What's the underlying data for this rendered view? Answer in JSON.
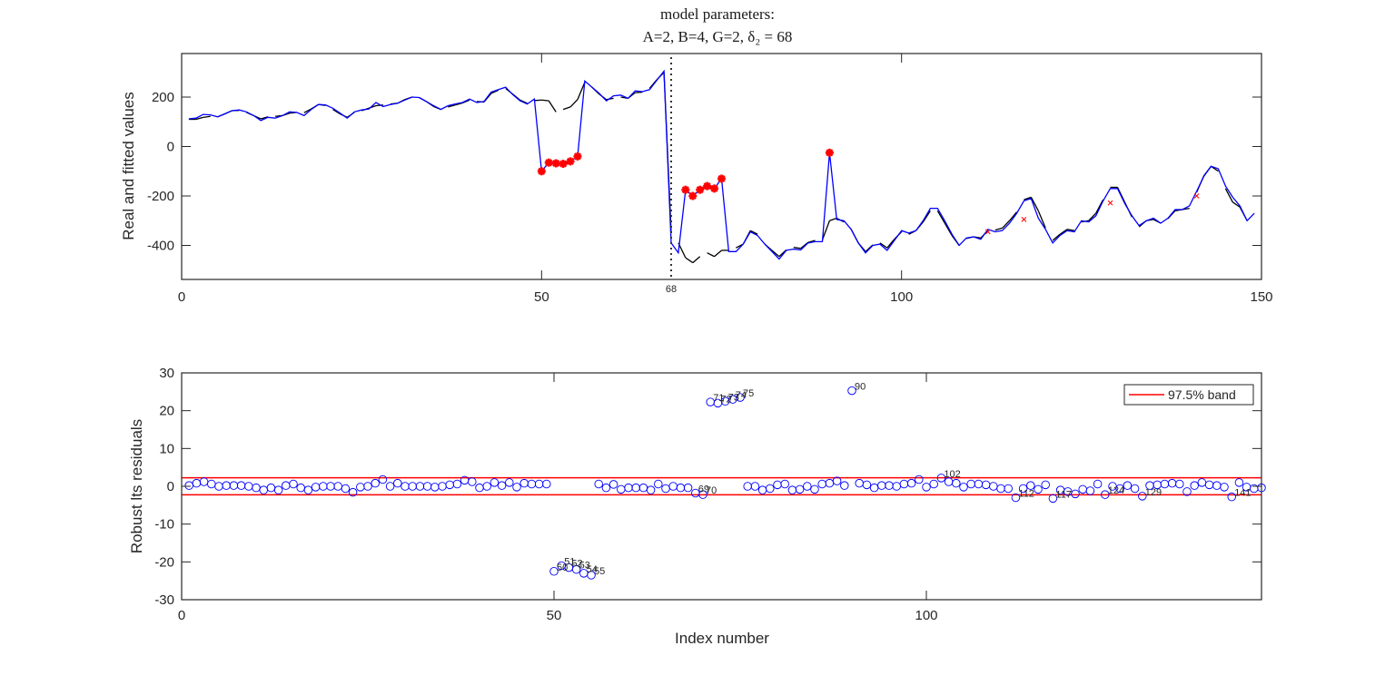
{
  "figure": {
    "title_line1": "model parameters:",
    "title_line2": "A=2, B=4, G=2, δ₂ = 68"
  },
  "chart_data": [
    {
      "type": "line",
      "name": "real-and-fitted",
      "title": "model parameters: A=2, B=4, G=2, δ2 = 68",
      "xlabel": "",
      "ylabel": "Real and fitted values",
      "xlim": [
        0,
        150
      ],
      "ylim": [
        -540,
        380
      ],
      "xticks": [
        0,
        50,
        100,
        150
      ],
      "xtick_labels": [
        "0",
        "50",
        "100",
        "150"
      ],
      "yticks": [
        200,
        0,
        -200,
        -400
      ],
      "ytick_labels": [
        "200",
        "0",
        "-200",
        "-400"
      ],
      "grid": false,
      "vline": {
        "x": 68,
        "label": "68",
        "style": "dotted",
        "color": "#333333"
      },
      "colors": {
        "real": "#0000ff",
        "fitted": "#000000",
        "outlier": "#ff0000"
      },
      "series": [
        {
          "name": "Real values",
          "color": "#0000ff",
          "x_start": 1,
          "values": [
            112,
            115,
            130,
            128,
            120,
            132,
            145,
            148,
            140,
            125,
            105,
            118,
            115,
            125,
            140,
            138,
            125,
            150,
            170,
            168,
            155,
            135,
            115,
            140,
            148,
            152,
            178,
            162,
            170,
            175,
            188,
            200,
            198,
            182,
            165,
            150,
            165,
            172,
            178,
            192,
            178,
            182,
            220,
            230,
            240,
            210,
            185,
            172,
            192,
            -100,
            -65,
            -68,
            -70,
            -60,
            -40,
            265,
            240,
            215,
            185,
            205,
            208,
            195,
            225,
            222,
            230,
            268,
            305,
            -390,
            -430,
            -175,
            -200,
            -175,
            -160,
            -170,
            -130,
            -425,
            -425,
            -395,
            -345,
            -360,
            -395,
            -425,
            -455,
            -420,
            -415,
            -418,
            -390,
            -385,
            -385,
            -25,
            -295,
            -300,
            -335,
            -390,
            -430,
            -400,
            -395,
            -420,
            -380,
            -340,
            -350,
            -340,
            -300,
            -250,
            -250,
            -300,
            -355,
            -400,
            -370,
            -365,
            -375,
            -335,
            -345,
            -340,
            -310,
            -270,
            -220,
            -210,
            -290,
            -335,
            -390,
            -360,
            -340,
            -345,
            -300,
            -305,
            -280,
            -220,
            -170,
            -170,
            -230,
            -280,
            -320,
            -300,
            -290,
            -310,
            -290,
            -255,
            -255,
            -240,
            -180,
            -120,
            -80,
            -90,
            -160,
            -205,
            -240,
            -300,
            -270
          ],
          "plot_markers": false
        },
        {
          "name": "Fitted values",
          "color": "#000000",
          "x_start": 1,
          "values": [
            110,
            110,
            118,
            122,
            120,
            132,
            145,
            146,
            138,
            125,
            112,
            120,
            122,
            125,
            135,
            138,
            137,
            152,
            170,
            166,
            150,
            132,
            118,
            138,
            145,
            155,
            165,
            168,
            172,
            175,
            190,
            200,
            198,
            182,
            162,
            150,
            160,
            168,
            176,
            188,
            182,
            180,
            215,
            228,
            235,
            212,
            188,
            175,
            186,
            188,
            185,
            140,
            150,
            160,
            190,
            260,
            240,
            212,
            190,
            195,
            200,
            195,
            218,
            220,
            235,
            270,
            300,
            -350,
            -390,
            -450,
            -470,
            -445,
            -430,
            -445,
            -420,
            -420,
            -410,
            -395,
            -340,
            -355,
            -395,
            -420,
            -445,
            -418,
            -408,
            -412,
            -388,
            -380,
            -378,
            -300,
            -290,
            -305,
            -335,
            -390,
            -425,
            -398,
            -390,
            -410,
            -375,
            -345,
            -355,
            -340,
            -305,
            -260,
            -260,
            -310,
            -360,
            -400,
            -372,
            -365,
            -370,
            -340,
            -338,
            -330,
            -300,
            -265,
            -215,
            -205,
            -260,
            -330,
            -380,
            -355,
            -335,
            -340,
            -305,
            -300,
            -270,
            -215,
            -165,
            -165,
            -225,
            -285,
            -325,
            -300,
            -295,
            -310,
            -292,
            -260,
            -255,
            -250,
            -185,
            -118,
            -80,
            -100,
            -170,
            -225,
            -245,
            -300,
            -270
          ],
          "plot_markers": false
        }
      ],
      "outliers": {
        "marker": "star",
        "color": "#ff0000",
        "points": [
          {
            "x": 50,
            "y": -100
          },
          {
            "x": 51,
            "y": -65
          },
          {
            "x": 52,
            "y": -68
          },
          {
            "x": 53,
            "y": -70
          },
          {
            "x": 54,
            "y": -60
          },
          {
            "x": 55,
            "y": -40
          },
          {
            "x": 70,
            "y": -175
          },
          {
            "x": 71,
            "y": -200
          },
          {
            "x": 72,
            "y": -175
          },
          {
            "x": 73,
            "y": -160
          },
          {
            "x": 74,
            "y": -170
          },
          {
            "x": 75,
            "y": -130
          },
          {
            "x": 90,
            "y": -25
          }
        ]
      },
      "small_crosses": {
        "marker": "x",
        "color": "#ff0000",
        "points": [
          {
            "x": 112,
            "y": -345
          },
          {
            "x": 117,
            "y": -295
          },
          {
            "x": 129,
            "y": -228
          },
          {
            "x": 141,
            "y": -200
          }
        ]
      }
    },
    {
      "type": "scatter",
      "name": "robust-lts-residuals",
      "xlabel": "Index number",
      "ylabel": "Robust lts residuals",
      "xlim": [
        0,
        145
      ],
      "ylim": [
        -30,
        30
      ],
      "xticks": [
        0,
        50,
        100
      ],
      "xtick_labels": [
        "0",
        "50",
        "100"
      ],
      "yticks": [
        30,
        20,
        10,
        0,
        -10,
        -20,
        -30
      ],
      "ytick_labels": [
        "30",
        "20",
        "10",
        "0",
        "-10",
        "-20",
        "-30"
      ],
      "grid": false,
      "marker": "circle-open",
      "marker_color": "#0000ff",
      "band": {
        "upper": 2.24,
        "lower": -2.24,
        "color": "#ff0000",
        "legend": "97.5% band"
      },
      "legend_position": "northeast",
      "x_start": 1,
      "values": [
        0.2,
        0.8,
        1.2,
        0.6,
        0,
        0.2,
        0.2,
        0.2,
        0,
        -0.4,
        -1,
        -0.4,
        -1,
        0.2,
        0.6,
        -0.4,
        -1,
        -0.2,
        0,
        0,
        0,
        -0.6,
        -1.6,
        -0.2,
        0,
        0.8,
        1.8,
        0,
        0.8,
        0,
        0,
        0,
        0,
        -0.2,
        0,
        0.4,
        0.6,
        1.6,
        1.2,
        -0.4,
        0,
        1.0,
        0.2,
        1.0,
        -0.2,
        0.8,
        0.6,
        0.6,
        0.6,
        -22.5,
        -21,
        -21.5,
        -22,
        -23,
        -23.5,
        0.6,
        -0.4,
        0.5,
        -0.8,
        -0.4,
        -0.4,
        -0.4,
        -1,
        0.6,
        -0.6,
        0,
        -0.4,
        -0.4,
        -1.8,
        -2.2,
        22.3,
        22,
        22.5,
        23,
        23.5,
        0,
        0,
        -1,
        -0.6,
        0.4,
        0.6,
        -1,
        -0.8,
        0,
        -0.8,
        0.6,
        0.8,
        1.4,
        0.2,
        25.3,
        0.8,
        0.4,
        -0.4,
        0.2,
        0.2,
        0,
        0.6,
        0.8,
        1.8,
        -0.2,
        0.6,
        2.2,
        1.2,
        0.8,
        -0.2,
        0.6,
        0.6,
        0.4,
        0,
        -0.6,
        -0.6,
        -3,
        -0.6,
        0.2,
        -0.8,
        0.4,
        -3.2,
        -1,
        -1.4,
        -2,
        -0.8,
        -1.2,
        0.6,
        -2.2,
        0,
        -0.6,
        0.2,
        -0.6,
        -2.6,
        0.2,
        0.4,
        0.6,
        0.8,
        0.6,
        -1.4,
        0.2,
        1.0,
        0.4,
        0.2,
        -0.2,
        -2.8,
        1.0,
        -0.2,
        -0.6,
        -0.4
      ],
      "labels": [
        {
          "x": 50,
          "text": "50"
        },
        {
          "x": 51,
          "text": "51"
        },
        {
          "x": 52,
          "text": "52"
        },
        {
          "x": 53,
          "text": "53"
        },
        {
          "x": 54,
          "text": "54"
        },
        {
          "x": 55,
          "text": "55"
        },
        {
          "x": 69,
          "text": "69"
        },
        {
          "x": 70,
          "text": "70"
        },
        {
          "x": 71,
          "text": "71"
        },
        {
          "x": 72,
          "text": "72"
        },
        {
          "x": 73,
          "text": "73"
        },
        {
          "x": 74,
          "text": "74"
        },
        {
          "x": 75,
          "text": "75"
        },
        {
          "x": 90,
          "text": "90"
        },
        {
          "x": 102,
          "text": "102"
        },
        {
          "x": 112,
          "text": "112"
        },
        {
          "x": 117,
          "text": "117"
        },
        {
          "x": 124,
          "text": "124"
        },
        {
          "x": 129,
          "text": "129"
        },
        {
          "x": 141,
          "text": "141"
        }
      ]
    }
  ]
}
